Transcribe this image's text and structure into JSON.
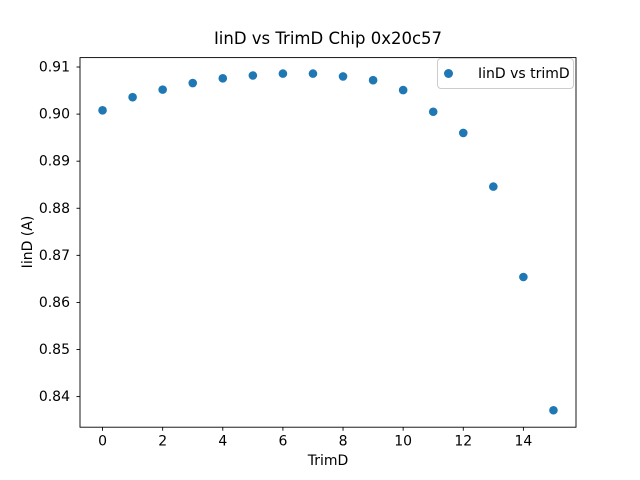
{
  "figure": {
    "background": "#ffffff",
    "axis_color": "#000000",
    "legend_border_color": "#cccccc"
  },
  "chart_data": {
    "type": "scatter",
    "title": "IinD vs TrimD Chip 0x20c57",
    "xlabel": "TrimD",
    "ylabel": "IinD (A)",
    "xlim": [
      -0.75,
      15.75
    ],
    "ylim": [
      0.8335,
      0.912
    ],
    "grid": false,
    "legend": {
      "label": "IinD vs trimD",
      "position": "upper right"
    },
    "marker": {
      "shape": "circle",
      "color": "#1f77b4",
      "radius_px": 4.3
    },
    "xticks": {
      "values": [
        0,
        2,
        4,
        6,
        8,
        10,
        12,
        14
      ],
      "labels": [
        "0",
        "2",
        "4",
        "6",
        "8",
        "10",
        "12",
        "14"
      ]
    },
    "yticks": {
      "values": [
        0.84,
        0.85,
        0.86,
        0.87,
        0.88,
        0.89,
        0.9,
        0.91
      ],
      "labels": [
        "0.84",
        "0.85",
        "0.86",
        "0.87",
        "0.88",
        "0.89",
        "0.90",
        "0.91"
      ]
    },
    "series": [
      {
        "name": "IinD vs trimD",
        "color": "#1f77b4",
        "x": [
          0,
          1,
          2,
          3,
          4,
          5,
          6,
          7,
          8,
          9,
          10,
          11,
          12,
          13,
          14,
          15
        ],
        "y": [
          0.9008,
          0.9036,
          0.9052,
          0.9066,
          0.9076,
          0.9082,
          0.9086,
          0.9086,
          0.908,
          0.9072,
          0.9051,
          0.9005,
          0.896,
          0.8846,
          0.8654,
          0.8371
        ]
      }
    ]
  }
}
